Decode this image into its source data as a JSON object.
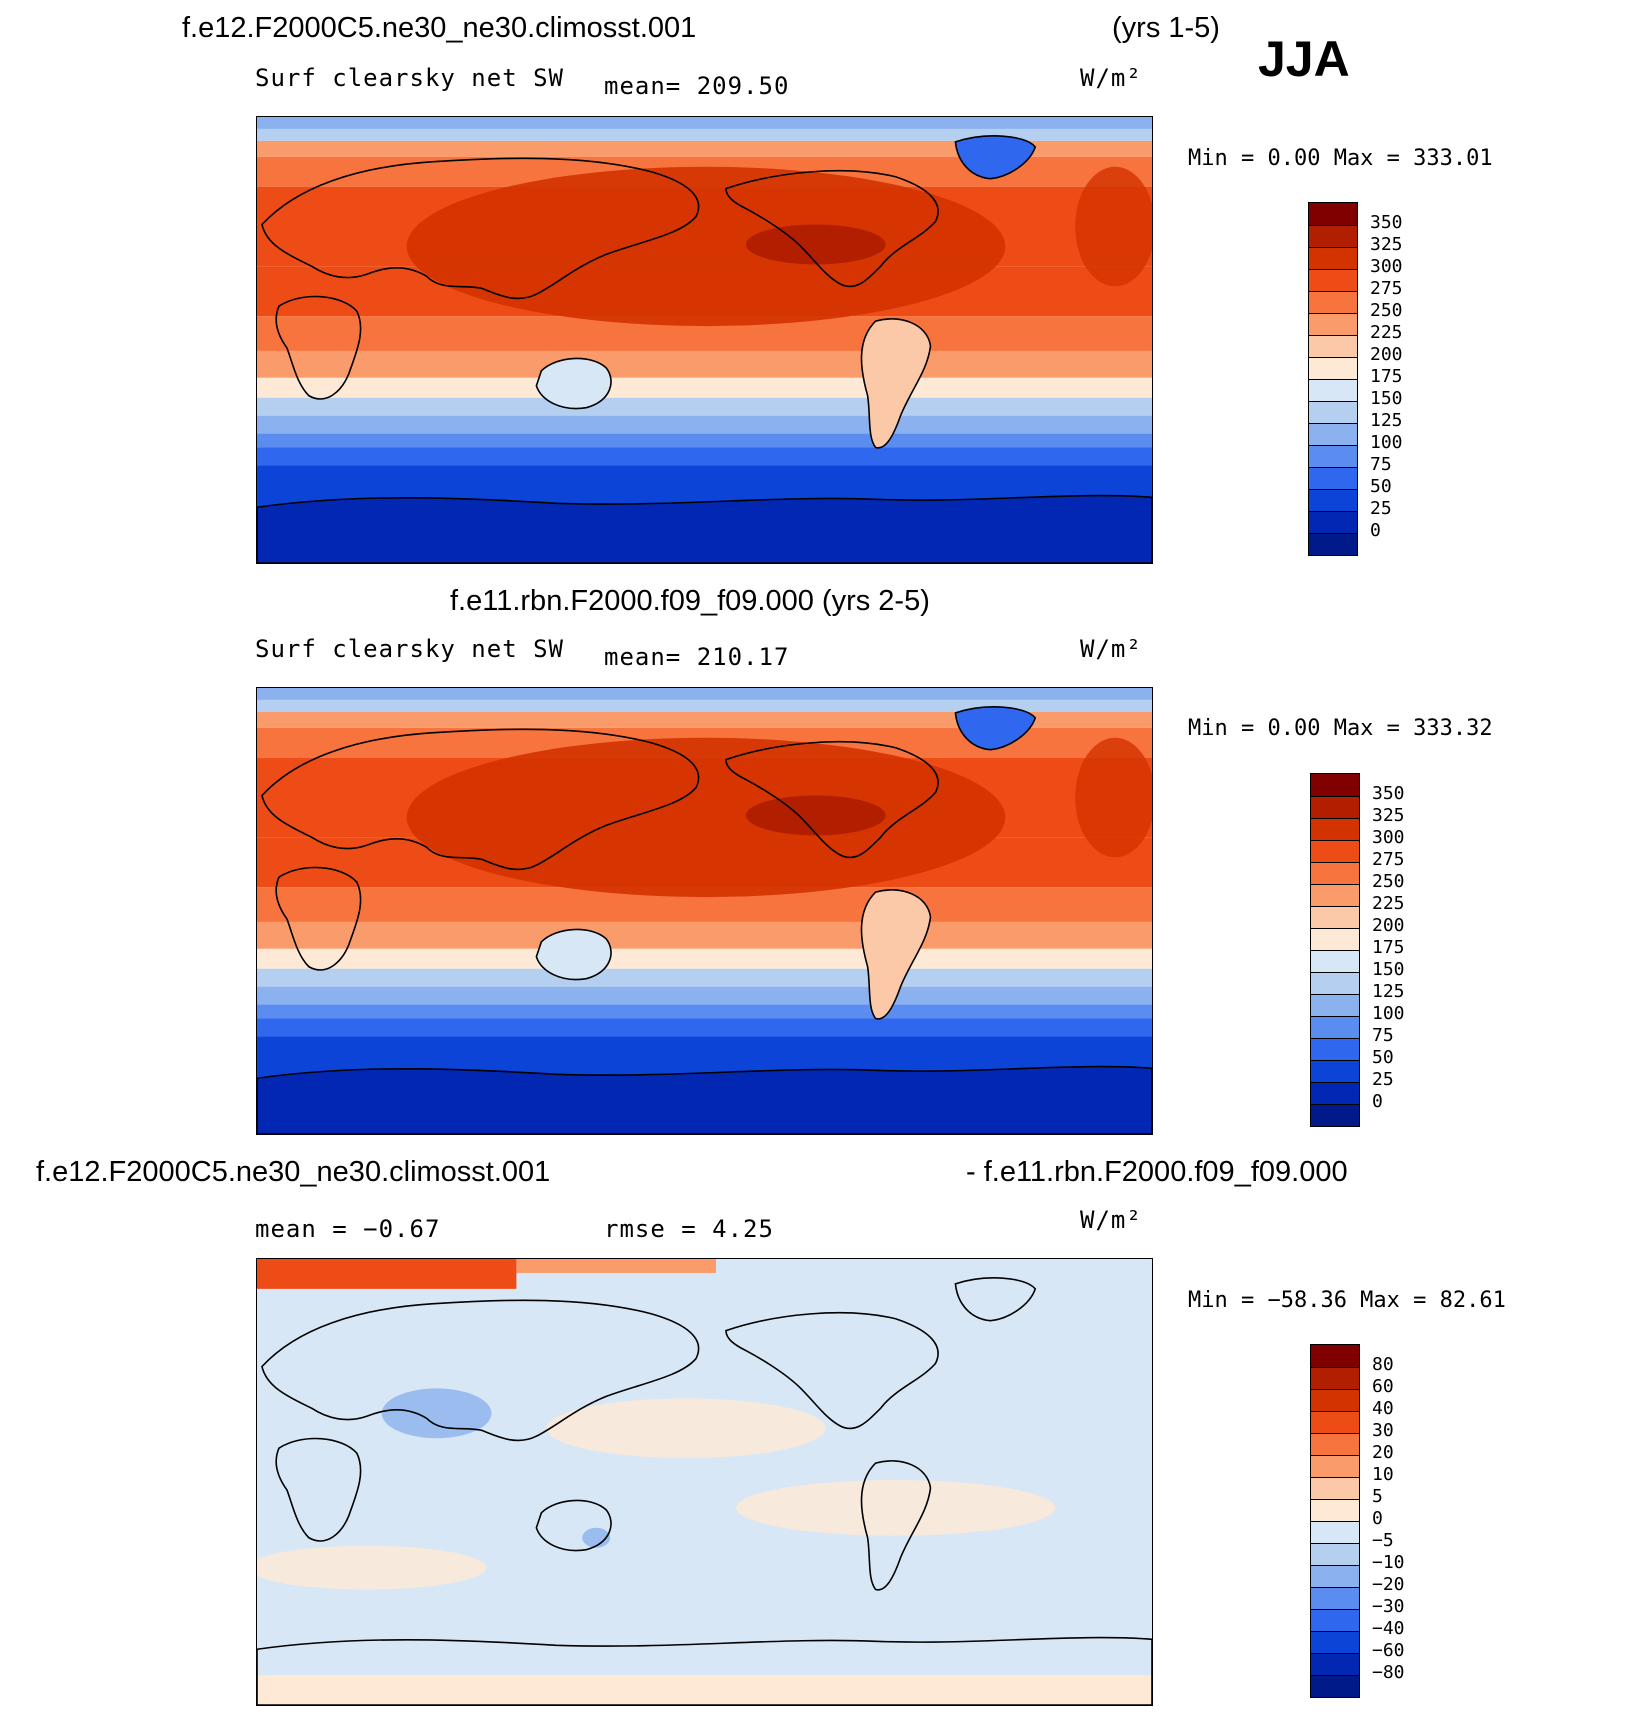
{
  "season": "JJA",
  "panels": [
    {
      "title_left": "f.e12.F2000C5.ne30_ne30.climosst.001",
      "title_right": "(yrs 1-5)",
      "variable": "Surf clearsky net SW",
      "stat": "mean= 209.50",
      "units": "W/m²",
      "minmax": "Min =    0.00 Max = 333.01",
      "map_name": "panel-1-map",
      "colorbar": {
        "labels": [
          "350",
          "325",
          "300",
          "275",
          "250",
          "225",
          "200",
          "175",
          "150",
          "125",
          "100",
          "75",
          "50",
          "25",
          "0"
        ],
        "colors": [
          "#800000",
          "#b21e00",
          "#d33300",
          "#ee4c16",
          "#f7743e",
          "#fa9b6b",
          "#fcc9a8",
          "#fde9d6",
          "#d8e7f5",
          "#b5cff0",
          "#8bb1ee",
          "#5b8df0",
          "#2f68ee",
          "#0c44d8",
          "#0227b3",
          "#001a8a"
        ]
      }
    },
    {
      "title_left": "f.e11.rbn.F2000.f09_f09.000 (yrs 2-5)",
      "title_right": "",
      "variable": "Surf clearsky net SW",
      "stat": "mean= 210.17",
      "units": "W/m²",
      "minmax": "Min =    0.00 Max = 333.32",
      "map_name": "panel-2-map",
      "colorbar": {
        "labels": [
          "350",
          "325",
          "300",
          "275",
          "250",
          "225",
          "200",
          "175",
          "150",
          "125",
          "100",
          "75",
          "50",
          "25",
          "0"
        ],
        "colors": [
          "#800000",
          "#b21e00",
          "#d33300",
          "#ee4c16",
          "#f7743e",
          "#fa9b6b",
          "#fcc9a8",
          "#fde9d6",
          "#d8e7f5",
          "#b5cff0",
          "#8bb1ee",
          "#5b8df0",
          "#2f68ee",
          "#0c44d8",
          "#0227b3",
          "#001a8a"
        ]
      }
    },
    {
      "title_left": "f.e12.F2000C5.ne30_ne30.climosst.001",
      "title_right": "- f.e11.rbn.F2000.f09_f09.000",
      "variable": "mean =   −0.67",
      "stat": "rmse =    4.25",
      "units": "W/m²",
      "minmax": "Min = −58.36 Max =  82.61",
      "map_name": "panel-3-map",
      "colorbar": {
        "labels": [
          "80",
          "60",
          "40",
          "30",
          "20",
          "10",
          "5",
          "0",
          "−5",
          "−10",
          "−20",
          "−30",
          "−40",
          "−60",
          "−80"
        ],
        "colors": [
          "#800000",
          "#b21e00",
          "#d33300",
          "#ee4c16",
          "#f7743e",
          "#fa9b6b",
          "#fcc9a8",
          "#fde9d6",
          "#d8e7f5",
          "#b5cff0",
          "#8bb1ee",
          "#5b8df0",
          "#2f68ee",
          "#0c44d8",
          "#0227b3",
          "#001a8a"
        ]
      }
    }
  ]
}
